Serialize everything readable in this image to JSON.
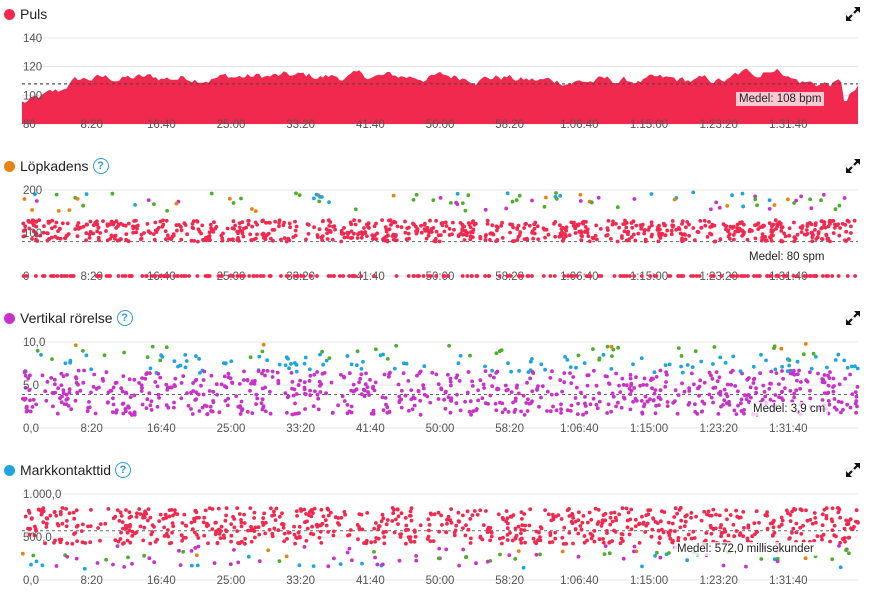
{
  "colors": {
    "heart": "#f2294e",
    "cadence": "#e8830f",
    "vertical": "#c832c8",
    "gct": "#1ea5e1",
    "green": "#4caf2a",
    "blue": "#1ea5e1",
    "orange": "#e8830f",
    "help": "#2b9bd8"
  },
  "icons": {
    "expand": "expand-icon",
    "help": "question-mark-icon"
  },
  "x_ticks": [
    "8:20",
    "16:40",
    "25:00",
    "33:20",
    "41:40",
    "50:00",
    "58:20",
    "1:06:40",
    "1:15:00",
    "1:23:20",
    "1:31:40"
  ],
  "charts": [
    {
      "id": "puls",
      "title": "Puls",
      "has_help": false,
      "avg_label": "Medel: 108 bpm",
      "chart_data": {
        "type": "area",
        "y_ticks": [
          "140",
          "120",
          "100",
          "80"
        ],
        "ylim": [
          80,
          140
        ],
        "avg": 108,
        "xlim_sec": [
          0,
          6000
        ]
      }
    },
    {
      "id": "lopkadens",
      "title": "Löpkadens",
      "has_help": true,
      "avg_label": "Medel: 80 spm",
      "chart_data": {
        "type": "scatter",
        "y_ticks": [
          "200",
          "100",
          "0"
        ],
        "ylim": [
          0,
          200
        ],
        "avg": 80,
        "xlim_sec": [
          0,
          6000
        ]
      }
    },
    {
      "id": "vertikal",
      "title": "Vertikal rörelse",
      "has_help": true,
      "avg_label": "Medel: 3,9 cm",
      "chart_data": {
        "type": "scatter",
        "y_ticks": [
          "10,0",
          "5,0",
          "0,0"
        ],
        "ylim": [
          0,
          10
        ],
        "avg": 3.9,
        "xlim_sec": [
          0,
          6000
        ]
      }
    },
    {
      "id": "markkontakt",
      "title": "Markkontakttid",
      "has_help": true,
      "avg_label": "Medel: 572,0 millisekunder",
      "chart_data": {
        "type": "scatter",
        "y_ticks": [
          "1.000,0",
          "500,0",
          "0,0"
        ],
        "ylim": [
          0,
          1000
        ],
        "avg": 572,
        "xlim_sec": [
          0,
          6000
        ]
      }
    }
  ]
}
